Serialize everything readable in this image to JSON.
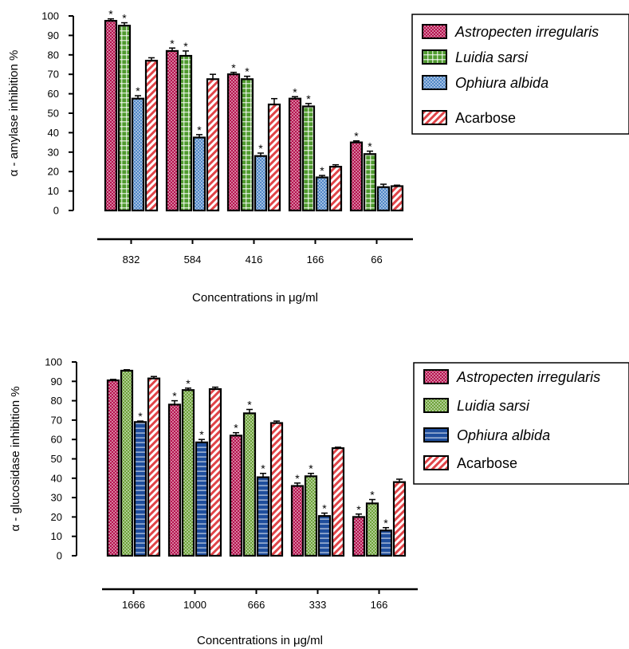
{
  "chart_data": [
    {
      "type": "bar",
      "title": "",
      "ylabel": "α - amylase inhibition %",
      "xlabel": "Concentrations in μg/ml",
      "ylim": [
        0,
        100
      ],
      "yticks": [
        0,
        10,
        20,
        30,
        40,
        50,
        60,
        70,
        80,
        90,
        100
      ],
      "categories": [
        "832",
        "584",
        "416",
        "166",
        "66"
      ],
      "legend_position": "top-right",
      "series": [
        {
          "name": "Astropecten irregularis",
          "italic": true,
          "color": "#b5124e",
          "pattern": "checker",
          "values": [
            97.5,
            82,
            70,
            57.5,
            35
          ],
          "errors": [
            1,
            1.5,
            1,
            1,
            0.8
          ],
          "significant": [
            true,
            true,
            true,
            true,
            true
          ]
        },
        {
          "name": "Luidia sarsi",
          "italic": true,
          "color": "#4f9a2e",
          "pattern": "grid",
          "values": [
            95,
            79.5,
            67.5,
            53.5,
            29
          ],
          "errors": [
            1.5,
            2.5,
            1.5,
            1.5,
            1.5
          ],
          "significant": [
            true,
            true,
            true,
            true,
            true
          ]
        },
        {
          "name": "Ophiura albida",
          "italic": true,
          "color": "#5288c8",
          "pattern": "checker",
          "values": [
            57.5,
            37.5,
            28,
            17,
            12
          ],
          "errors": [
            1.5,
            1.5,
            1.5,
            1,
            1.5
          ],
          "significant": [
            true,
            true,
            true,
            true,
            false
          ]
        },
        {
          "name": "Acarbose",
          "italic": false,
          "color": "#e04448",
          "pattern": "stripes",
          "values": [
            77,
            67.5,
            54.5,
            22.5,
            12.5
          ],
          "errors": [
            1.5,
            2.5,
            3,
            1,
            0.5
          ],
          "significant": [
            false,
            false,
            false,
            false,
            false
          ]
        }
      ]
    },
    {
      "type": "bar",
      "title": "",
      "ylabel": "α - glucosidase inhibition %",
      "xlabel": "Concentrations in μg/ml",
      "ylim": [
        0,
        100
      ],
      "yticks": [
        0,
        10,
        20,
        30,
        40,
        50,
        60,
        70,
        80,
        90,
        100
      ],
      "categories": [
        "1666",
        "1000",
        "666",
        "333",
        "166"
      ],
      "legend_position": "top-right",
      "series": [
        {
          "name": "Astropecten irregularis",
          "italic": true,
          "color": "#b5124e",
          "pattern": "checker",
          "values": [
            90.5,
            78,
            62,
            36,
            20
          ],
          "errors": [
            0.5,
            2,
            1.5,
            1.5,
            1.5
          ],
          "significant": [
            false,
            true,
            true,
            true,
            true
          ]
        },
        {
          "name": "Luidia sarsi",
          "italic": true,
          "color": "#6ea33a",
          "pattern": "checker",
          "values": [
            95.5,
            85.5,
            73.5,
            41,
            27
          ],
          "errors": [
            0.5,
            1,
            2,
            1.5,
            2
          ],
          "significant": [
            false,
            true,
            true,
            true,
            true
          ]
        },
        {
          "name": "Ophiura albida",
          "italic": true,
          "color": "#1f4e9c",
          "pattern": "hlines",
          "values": [
            69,
            58.5,
            40.5,
            20.5,
            13
          ],
          "errors": [
            0.5,
            1.5,
            2,
            1.5,
            1.5
          ],
          "significant": [
            true,
            true,
            true,
            true,
            true
          ]
        },
        {
          "name": "Acarbose",
          "italic": false,
          "color": "#e04448",
          "pattern": "stripes",
          "values": [
            91.5,
            86,
            68.5,
            55.5,
            38
          ],
          "errors": [
            1,
            1,
            1,
            0.5,
            1.5
          ],
          "significant": [
            false,
            false,
            false,
            false,
            false
          ]
        }
      ]
    }
  ],
  "significance_marker": "*"
}
